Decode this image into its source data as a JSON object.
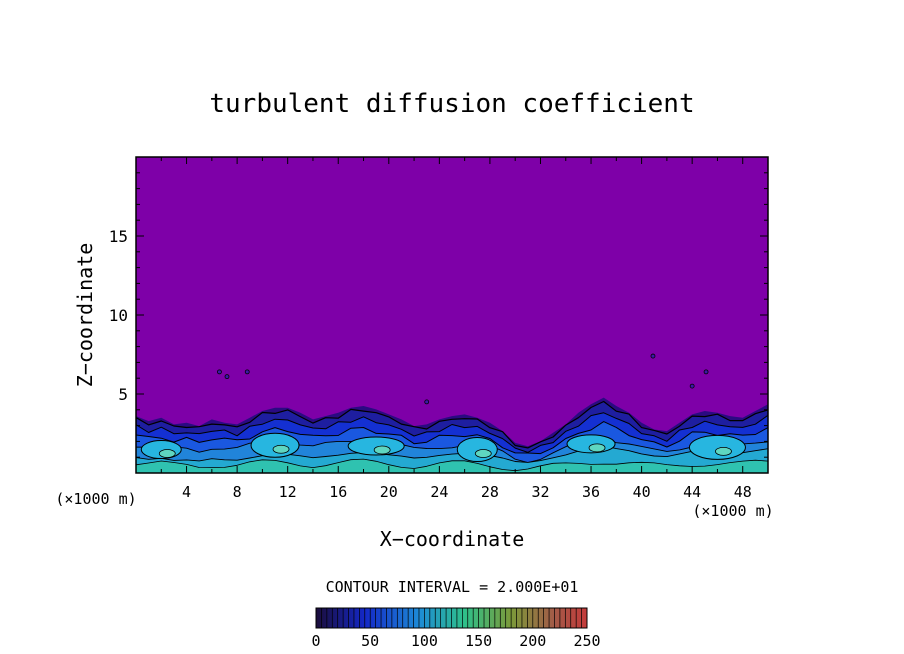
{
  "chart_data": {
    "type": "heatmap",
    "title": "turbulent diffusion coefficient",
    "xlabel": "X−coordinate",
    "ylabel": "Z−coordinate",
    "x_unit_left": "(×1000 m)",
    "x_unit_right": "(×1000 m)",
    "xlim": [
      0,
      50
    ],
    "ylim": [
      0,
      20
    ],
    "x_ticks": [
      4,
      8,
      12,
      16,
      20,
      24,
      28,
      32,
      36,
      40,
      44,
      48
    ],
    "y_ticks": [
      5,
      10,
      15
    ],
    "contour_interval_label": "CONTOUR INTERVAL = 2.000E+01",
    "colorbar": {
      "min": 0,
      "max": 250,
      "ticks": [
        0,
        50,
        100,
        150,
        200,
        250
      ]
    },
    "background_color": "#7e00a8",
    "boundary_layer_profile": [
      {
        "x": 0,
        "top": 3.4
      },
      {
        "x": 1,
        "top": 3.1
      },
      {
        "x": 2,
        "top": 3.3
      },
      {
        "x": 3,
        "top": 2.9
      },
      {
        "x": 4,
        "top": 3.0
      },
      {
        "x": 5,
        "top": 2.8
      },
      {
        "x": 6,
        "top": 3.2
      },
      {
        "x": 7,
        "top": 3.0
      },
      {
        "x": 8,
        "top": 2.9
      },
      {
        "x": 9,
        "top": 3.3
      },
      {
        "x": 10,
        "top": 3.7
      },
      {
        "x": 11,
        "top": 3.9
      },
      {
        "x": 12,
        "top": 3.9
      },
      {
        "x": 13,
        "top": 3.6
      },
      {
        "x": 14,
        "top": 3.2
      },
      {
        "x": 15,
        "top": 3.4
      },
      {
        "x": 16,
        "top": 3.6
      },
      {
        "x": 17,
        "top": 3.9
      },
      {
        "x": 18,
        "top": 4.0
      },
      {
        "x": 19,
        "top": 3.8
      },
      {
        "x": 20,
        "top": 3.5
      },
      {
        "x": 21,
        "top": 3.2
      },
      {
        "x": 22,
        "top": 2.8
      },
      {
        "x": 23,
        "top": 2.9
      },
      {
        "x": 24,
        "top": 3.2
      },
      {
        "x": 25,
        "top": 3.4
      },
      {
        "x": 26,
        "top": 3.5
      },
      {
        "x": 27,
        "top": 3.3
      },
      {
        "x": 28,
        "top": 3.0
      },
      {
        "x": 29,
        "top": 2.5
      },
      {
        "x": 30,
        "top": 1.8
      },
      {
        "x": 31,
        "top": 1.6
      },
      {
        "x": 32,
        "top": 1.9
      },
      {
        "x": 33,
        "top": 2.4
      },
      {
        "x": 34,
        "top": 2.9
      },
      {
        "x": 35,
        "top": 3.6
      },
      {
        "x": 36,
        "top": 4.1
      },
      {
        "x": 37,
        "top": 4.5
      },
      {
        "x": 38,
        "top": 4.0
      },
      {
        "x": 39,
        "top": 3.6
      },
      {
        "x": 40,
        "top": 3.0
      },
      {
        "x": 41,
        "top": 2.6
      },
      {
        "x": 42,
        "top": 2.5
      },
      {
        "x": 43,
        "top": 3.0
      },
      {
        "x": 44,
        "top": 3.5
      },
      {
        "x": 45,
        "top": 3.7
      },
      {
        "x": 46,
        "top": 3.6
      },
      {
        "x": 47,
        "top": 3.4
      },
      {
        "x": 48,
        "top": 3.3
      },
      {
        "x": 49,
        "top": 3.7
      },
      {
        "x": 50,
        "top": 4.1
      }
    ],
    "dome_centers": [
      2,
      11,
      19,
      27,
      36,
      46
    ],
    "isolated_spots": [
      {
        "x": 6.6,
        "z": 6.4
      },
      {
        "x": 7.2,
        "z": 6.1
      },
      {
        "x": 8.8,
        "z": 6.4
      },
      {
        "x": 23.0,
        "z": 4.5
      },
      {
        "x": 40.9,
        "z": 7.4
      },
      {
        "x": 44.0,
        "z": 5.5
      },
      {
        "x": 45.1,
        "z": 6.4
      }
    ]
  }
}
